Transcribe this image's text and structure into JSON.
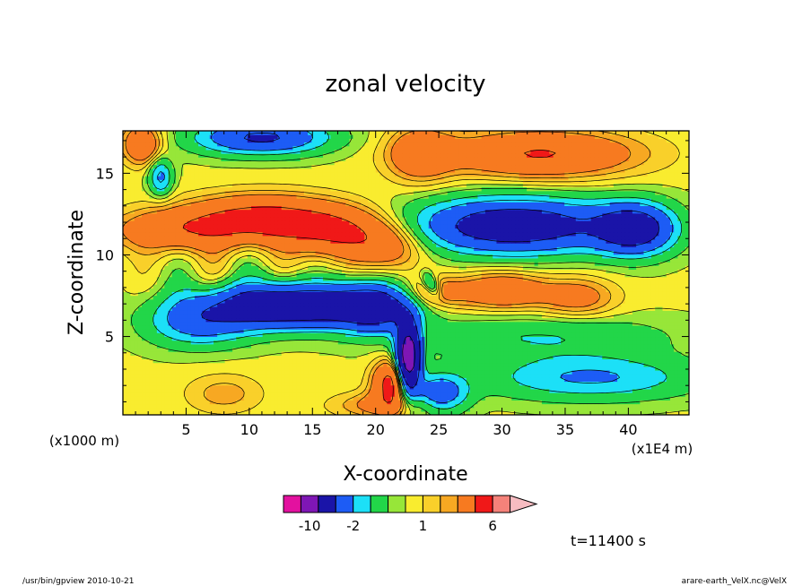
{
  "chart_data": {
    "type": "heatmap",
    "title": "zonal velocity",
    "xlabel": "X-coordinate",
    "ylabel": "Z-coordinate",
    "x_unit": "(x1E4 m)",
    "y_unit": "(x1000 m)",
    "xlim": [
      0,
      44.8
    ],
    "ylim": [
      0.2,
      17.6
    ],
    "x_ticks": [
      5,
      10,
      15,
      20,
      25,
      30,
      35,
      40
    ],
    "y_ticks": [
      5,
      10,
      15
    ],
    "x_tick_labels": [
      "5",
      "10",
      "15",
      "20",
      "25",
      "30",
      "35",
      "40"
    ],
    "y_tick_labels": [
      "5",
      "10",
      "15"
    ],
    "colorbar": {
      "levels": [
        -16,
        -12,
        -8,
        -4,
        -2,
        -1,
        0,
        0.5,
        1,
        1.5,
        2,
        4,
        6,
        8,
        10
      ],
      "colors": [
        "#e3119f",
        "#7f16b5",
        "#1a14a8",
        "#1d5cf5",
        "#1ce0f7",
        "#22d649",
        "#97e639",
        "#f9ec2f",
        "#f9d02a",
        "#f7a822",
        "#f77a20",
        "#f01818",
        "#f5827a",
        "#f7bcc1"
      ],
      "tick_values": [
        -10,
        -2,
        1,
        6
      ],
      "tick_labels": [
        "-10",
        "-2",
        "1",
        "6"
      ],
      "extend": "max"
    },
    "colors": {
      "background": "#ffffff",
      "frame": "#000000",
      "contour": "#000000"
    }
  },
  "annotation": "t=11400 s",
  "footer": {
    "left": "/usr/bin/gpview   2010-10-21",
    "right": "arare-earth_VelX.nc@VelX"
  }
}
